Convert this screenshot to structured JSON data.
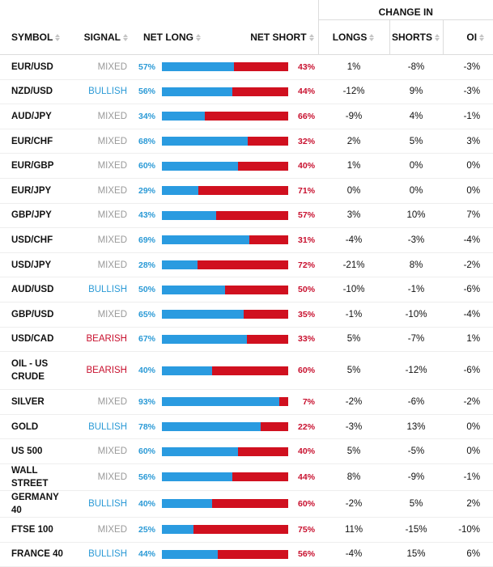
{
  "colors": {
    "bullish": "#2b9ad6",
    "bearish": "#c8102e",
    "mixed": "#9a9a9a",
    "long_bar": "#2a9be0",
    "short_bar": "#d0101f"
  },
  "headers": {
    "change_in": "CHANGE IN",
    "symbol": "SYMBOL",
    "signal": "SIGNAL",
    "net_long": "NET LONG",
    "net_short": "NET SHORT",
    "longs": "LONGS",
    "shorts": "SHORTS",
    "oi": "OI"
  },
  "rows": [
    {
      "symbol": "EUR/USD",
      "signal": "MIXED",
      "net_long": "57%",
      "net_short": "43%",
      "long_fraction": 0.57,
      "longs": "1%",
      "shorts": "-8%",
      "oi": "-3%"
    },
    {
      "symbol": "NZD/USD",
      "signal": "BULLISH",
      "net_long": "56%",
      "net_short": "44%",
      "long_fraction": 0.56,
      "longs": "-12%",
      "shorts": "9%",
      "oi": "-3%"
    },
    {
      "symbol": "AUD/JPY",
      "signal": "MIXED",
      "net_long": "34%",
      "net_short": "66%",
      "long_fraction": 0.34,
      "longs": "-9%",
      "shorts": "4%",
      "oi": "-1%"
    },
    {
      "symbol": "EUR/CHF",
      "signal": "MIXED",
      "net_long": "68%",
      "net_short": "32%",
      "long_fraction": 0.68,
      "longs": "2%",
      "shorts": "5%",
      "oi": "3%"
    },
    {
      "symbol": "EUR/GBP",
      "signal": "MIXED",
      "net_long": "60%",
      "net_short": "40%",
      "long_fraction": 0.6,
      "longs": "1%",
      "shorts": "0%",
      "oi": "0%"
    },
    {
      "symbol": "EUR/JPY",
      "signal": "MIXED",
      "net_long": "29%",
      "net_short": "71%",
      "long_fraction": 0.29,
      "longs": "0%",
      "shorts": "0%",
      "oi": "0%"
    },
    {
      "symbol": "GBP/JPY",
      "signal": "MIXED",
      "net_long": "43%",
      "net_short": "57%",
      "long_fraction": 0.43,
      "longs": "3%",
      "shorts": "10%",
      "oi": "7%"
    },
    {
      "symbol": "USD/CHF",
      "signal": "MIXED",
      "net_long": "69%",
      "net_short": "31%",
      "long_fraction": 0.69,
      "longs": "-4%",
      "shorts": "-3%",
      "oi": "-4%"
    },
    {
      "symbol": "USD/JPY",
      "signal": "MIXED",
      "net_long": "28%",
      "net_short": "72%",
      "long_fraction": 0.28,
      "longs": "-21%",
      "shorts": "8%",
      "oi": "-2%"
    },
    {
      "symbol": "AUD/USD",
      "signal": "BULLISH",
      "net_long": "50%",
      "net_short": "50%",
      "long_fraction": 0.5,
      "longs": "-10%",
      "shorts": "-1%",
      "oi": "-6%"
    },
    {
      "symbol": "GBP/USD",
      "signal": "MIXED",
      "net_long": "65%",
      "net_short": "35%",
      "long_fraction": 0.65,
      "longs": "-1%",
      "shorts": "-10%",
      "oi": "-4%"
    },
    {
      "symbol": "USD/CAD",
      "signal": "BEARISH",
      "net_long": "67%",
      "net_short": "33%",
      "long_fraction": 0.67,
      "longs": "5%",
      "shorts": "-7%",
      "oi": "1%"
    },
    {
      "symbol": "OIL - US CRUDE",
      "signal": "BEARISH",
      "net_long": "40%",
      "net_short": "60%",
      "long_fraction": 0.4,
      "longs": "5%",
      "shorts": "-12%",
      "oi": "-6%",
      "tall": true
    },
    {
      "symbol": "SILVER",
      "signal": "MIXED",
      "net_long": "93%",
      "net_short": "7%",
      "long_fraction": 0.93,
      "longs": "-2%",
      "shorts": "-6%",
      "oi": "-2%"
    },
    {
      "symbol": "GOLD",
      "signal": "BULLISH",
      "net_long": "78%",
      "net_short": "22%",
      "long_fraction": 0.78,
      "longs": "-3%",
      "shorts": "13%",
      "oi": "0%"
    },
    {
      "symbol": "US 500",
      "signal": "MIXED",
      "net_long": "60%",
      "net_short": "40%",
      "long_fraction": 0.6,
      "longs": "5%",
      "shorts": "-5%",
      "oi": "0%"
    },
    {
      "symbol": "WALL STREET",
      "signal": "MIXED",
      "net_long": "56%",
      "net_short": "44%",
      "long_fraction": 0.56,
      "longs": "8%",
      "shorts": "-9%",
      "oi": "-1%"
    },
    {
      "symbol": "GERMANY 40",
      "signal": "BULLISH",
      "net_long": "40%",
      "net_short": "60%",
      "long_fraction": 0.4,
      "longs": "-2%",
      "shorts": "5%",
      "oi": "2%"
    },
    {
      "symbol": "FTSE 100",
      "signal": "MIXED",
      "net_long": "25%",
      "net_short": "75%",
      "long_fraction": 0.25,
      "longs": "11%",
      "shorts": "-15%",
      "oi": "-10%"
    },
    {
      "symbol": "FRANCE 40",
      "signal": "BULLISH",
      "net_long": "44%",
      "net_short": "56%",
      "long_fraction": 0.44,
      "longs": "-4%",
      "shorts": "15%",
      "oi": "6%"
    }
  ]
}
